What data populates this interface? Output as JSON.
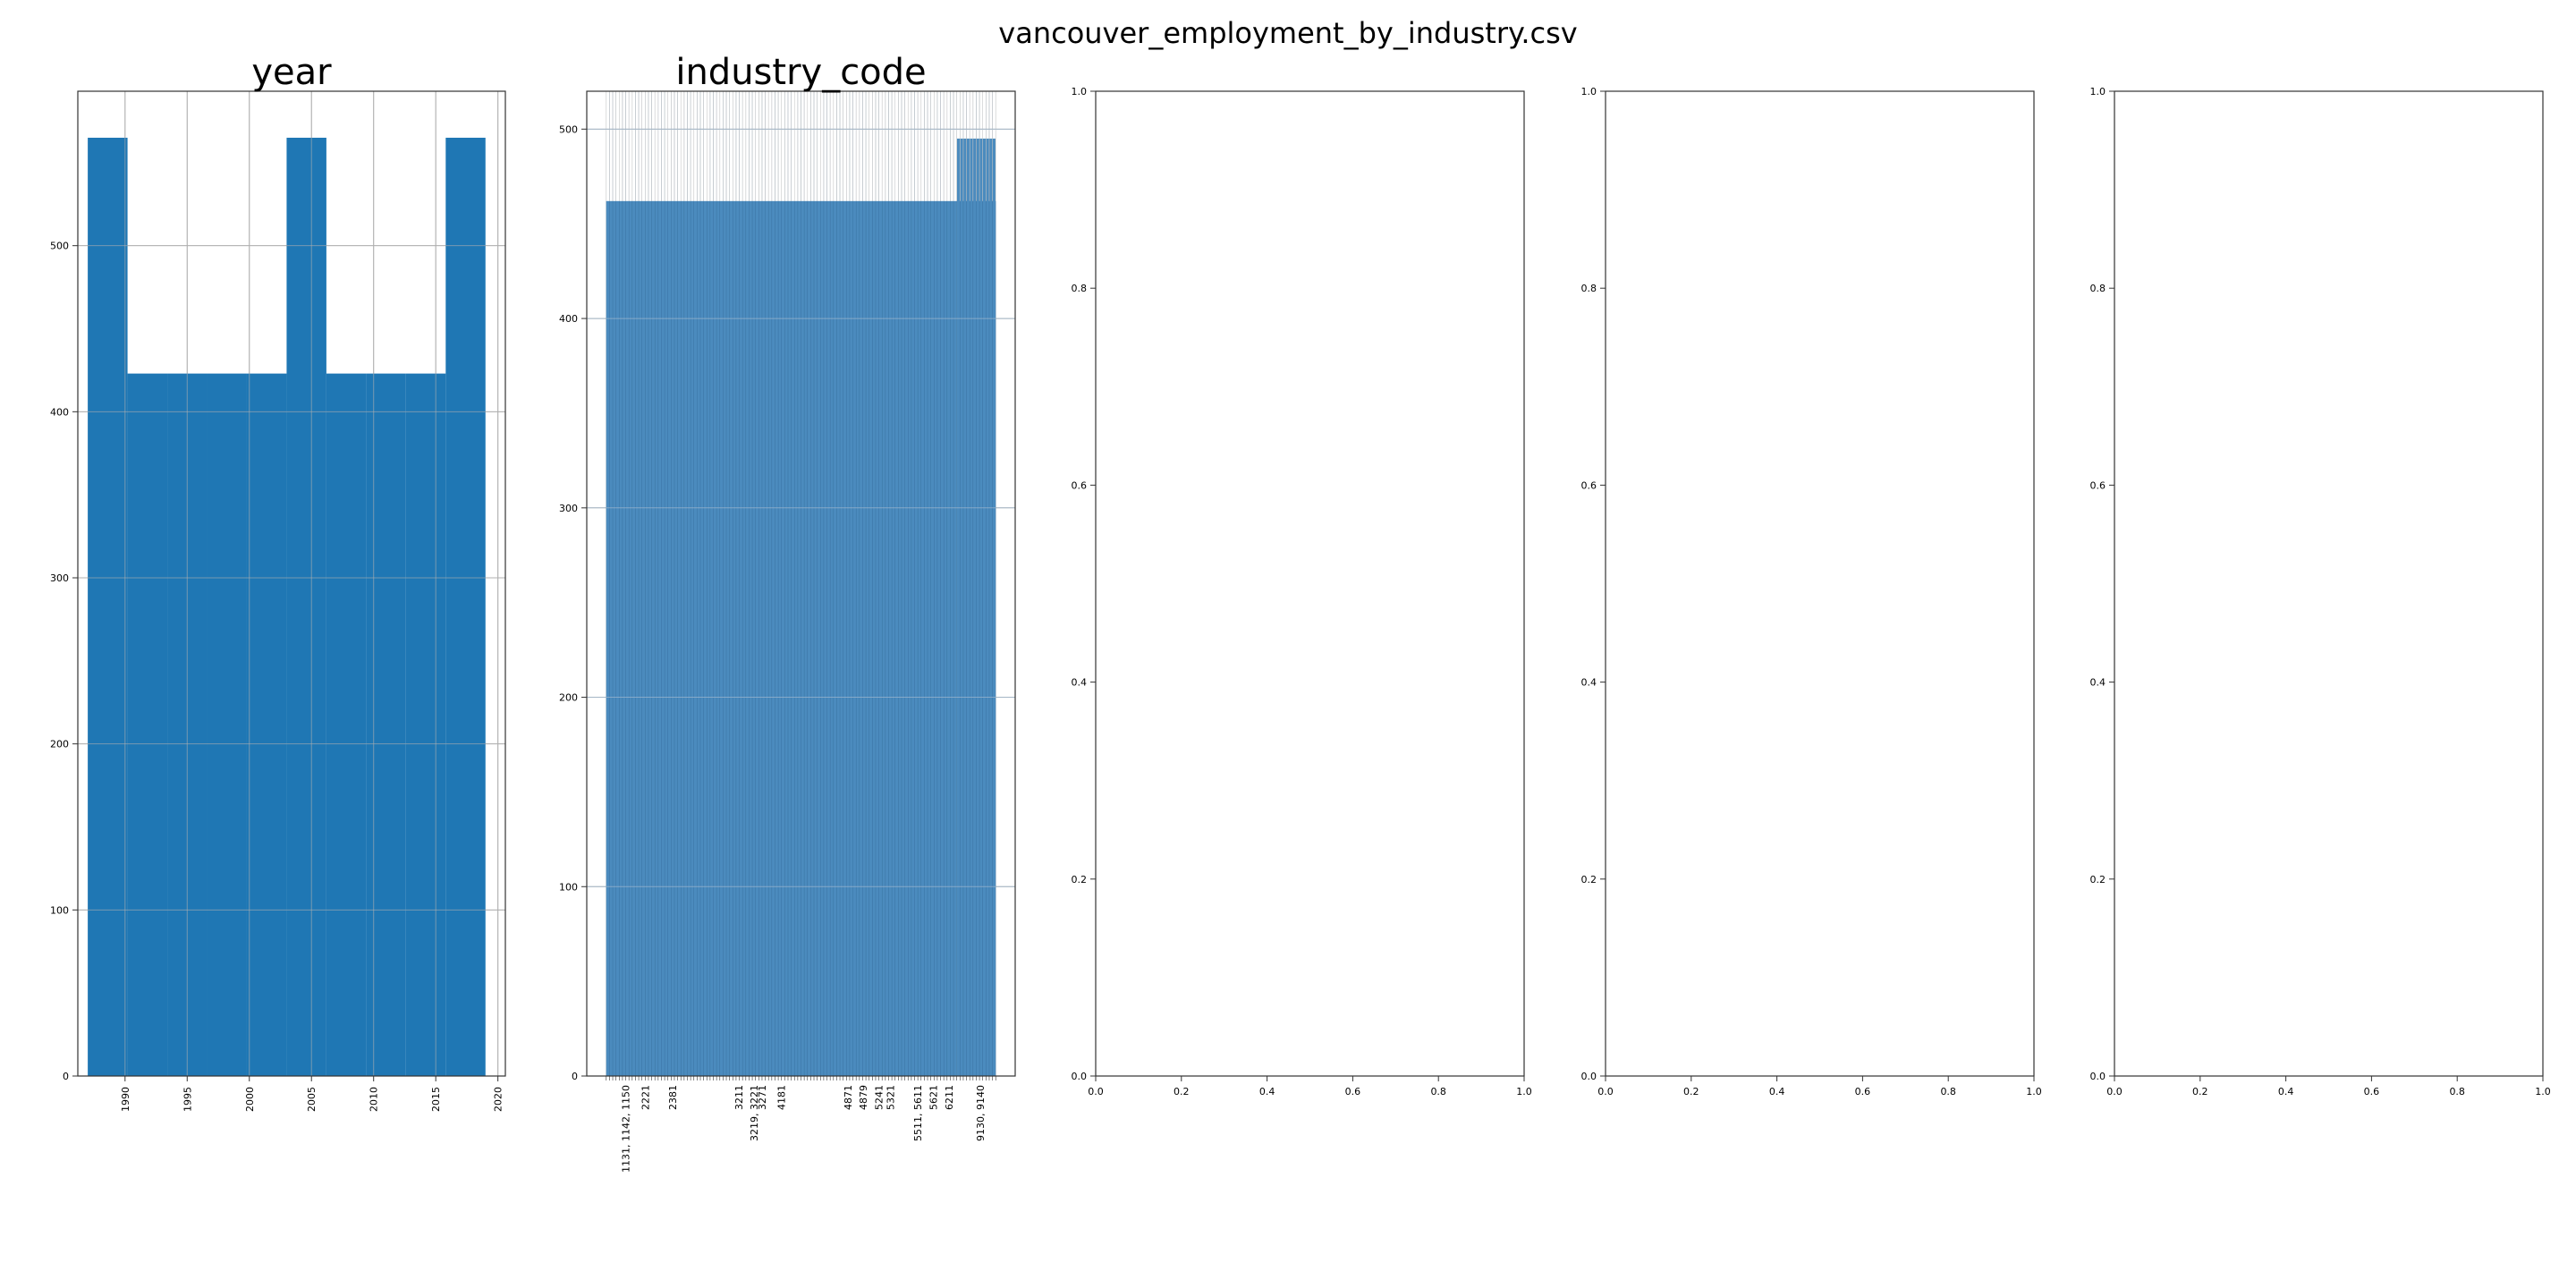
{
  "suptitle": "vancouver_employment_by_industry.csv",
  "chart_data": [
    {
      "type": "bar",
      "title": "year",
      "xlabel": "",
      "ylabel": "",
      "bar_color": "#1f77b4",
      "bins": [
        {
          "from": 1987.0,
          "to": 1990.2,
          "value": 565
        },
        {
          "from": 1990.2,
          "to": 1993.4,
          "value": 423
        },
        {
          "from": 1993.4,
          "to": 1996.6,
          "value": 423
        },
        {
          "from": 1996.6,
          "to": 1999.8,
          "value": 423
        },
        {
          "from": 1999.8,
          "to": 2003.0,
          "value": 423
        },
        {
          "from": 2003.0,
          "to": 2006.2,
          "value": 565
        },
        {
          "from": 2006.2,
          "to": 2009.4,
          "value": 423
        },
        {
          "from": 2009.4,
          "to": 2012.6,
          "value": 423
        },
        {
          "from": 2012.6,
          "to": 2015.8,
          "value": 423
        },
        {
          "from": 2015.8,
          "to": 2019.0,
          "value": 565
        }
      ],
      "xlim": [
        1986.2,
        2020.6
      ],
      "ylim": [
        0,
        593
      ],
      "xticks": [
        1990,
        1995,
        2000,
        2005,
        2010,
        2015,
        2020
      ],
      "yticks": [
        0,
        100,
        200,
        300,
        400,
        500
      ],
      "grid": true
    },
    {
      "type": "bar",
      "title": "industry_code",
      "xlabel": "",
      "ylabel": "",
      "bar_color": "#4b8bbe",
      "bins": [
        {
          "from": 0.0,
          "to": 0.9,
          "value": 462
        },
        {
          "from": 0.9,
          "to": 1.0,
          "value": 495
        }
      ],
      "category_count": 120,
      "xlim": [
        -0.05,
        1.05
      ],
      "ylim": [
        0,
        520
      ],
      "yticks": [
        0,
        100,
        200,
        300,
        400,
        500
      ],
      "tick_labels": [
        "1131, 1142, 1150",
        "2221",
        "2381",
        "3211",
        "3219, 3221",
        "3271",
        "4181",
        "4871",
        "4879",
        "5241",
        "5321",
        "5511, 5611",
        "5621",
        "6211",
        "9130, 9140"
      ],
      "tick_positions": [
        0.05,
        0.1,
        0.17,
        0.34,
        0.38,
        0.4,
        0.45,
        0.62,
        0.66,
        0.7,
        0.73,
        0.8,
        0.84,
        0.88,
        0.96
      ],
      "grid": true
    },
    {
      "type": "bar",
      "title": "",
      "xlim": [
        0,
        1
      ],
      "ylim": [
        0,
        1
      ],
      "xticks": [
        "0.0",
        "0.2",
        "0.4",
        "0.6",
        "0.8",
        "1.0"
      ],
      "yticks": [
        "0.0",
        "0.2",
        "0.4",
        "0.6",
        "0.8",
        "1.0"
      ]
    },
    {
      "type": "bar",
      "title": "",
      "xlim": [
        0,
        1
      ],
      "ylim": [
        0,
        1
      ],
      "xticks": [
        "0.0",
        "0.2",
        "0.4",
        "0.6",
        "0.8",
        "1.0"
      ],
      "yticks": [
        "0.0",
        "0.2",
        "0.4",
        "0.6",
        "0.8",
        "1.0"
      ]
    },
    {
      "type": "bar",
      "title": "",
      "xlim": [
        0,
        1
      ],
      "ylim": [
        0,
        1
      ],
      "xticks": [
        "0.0",
        "0.2",
        "0.4",
        "0.6",
        "0.8",
        "1.0"
      ],
      "yticks": [
        "0.0",
        "0.2",
        "0.4",
        "0.6",
        "0.8",
        "1.0"
      ]
    }
  ]
}
